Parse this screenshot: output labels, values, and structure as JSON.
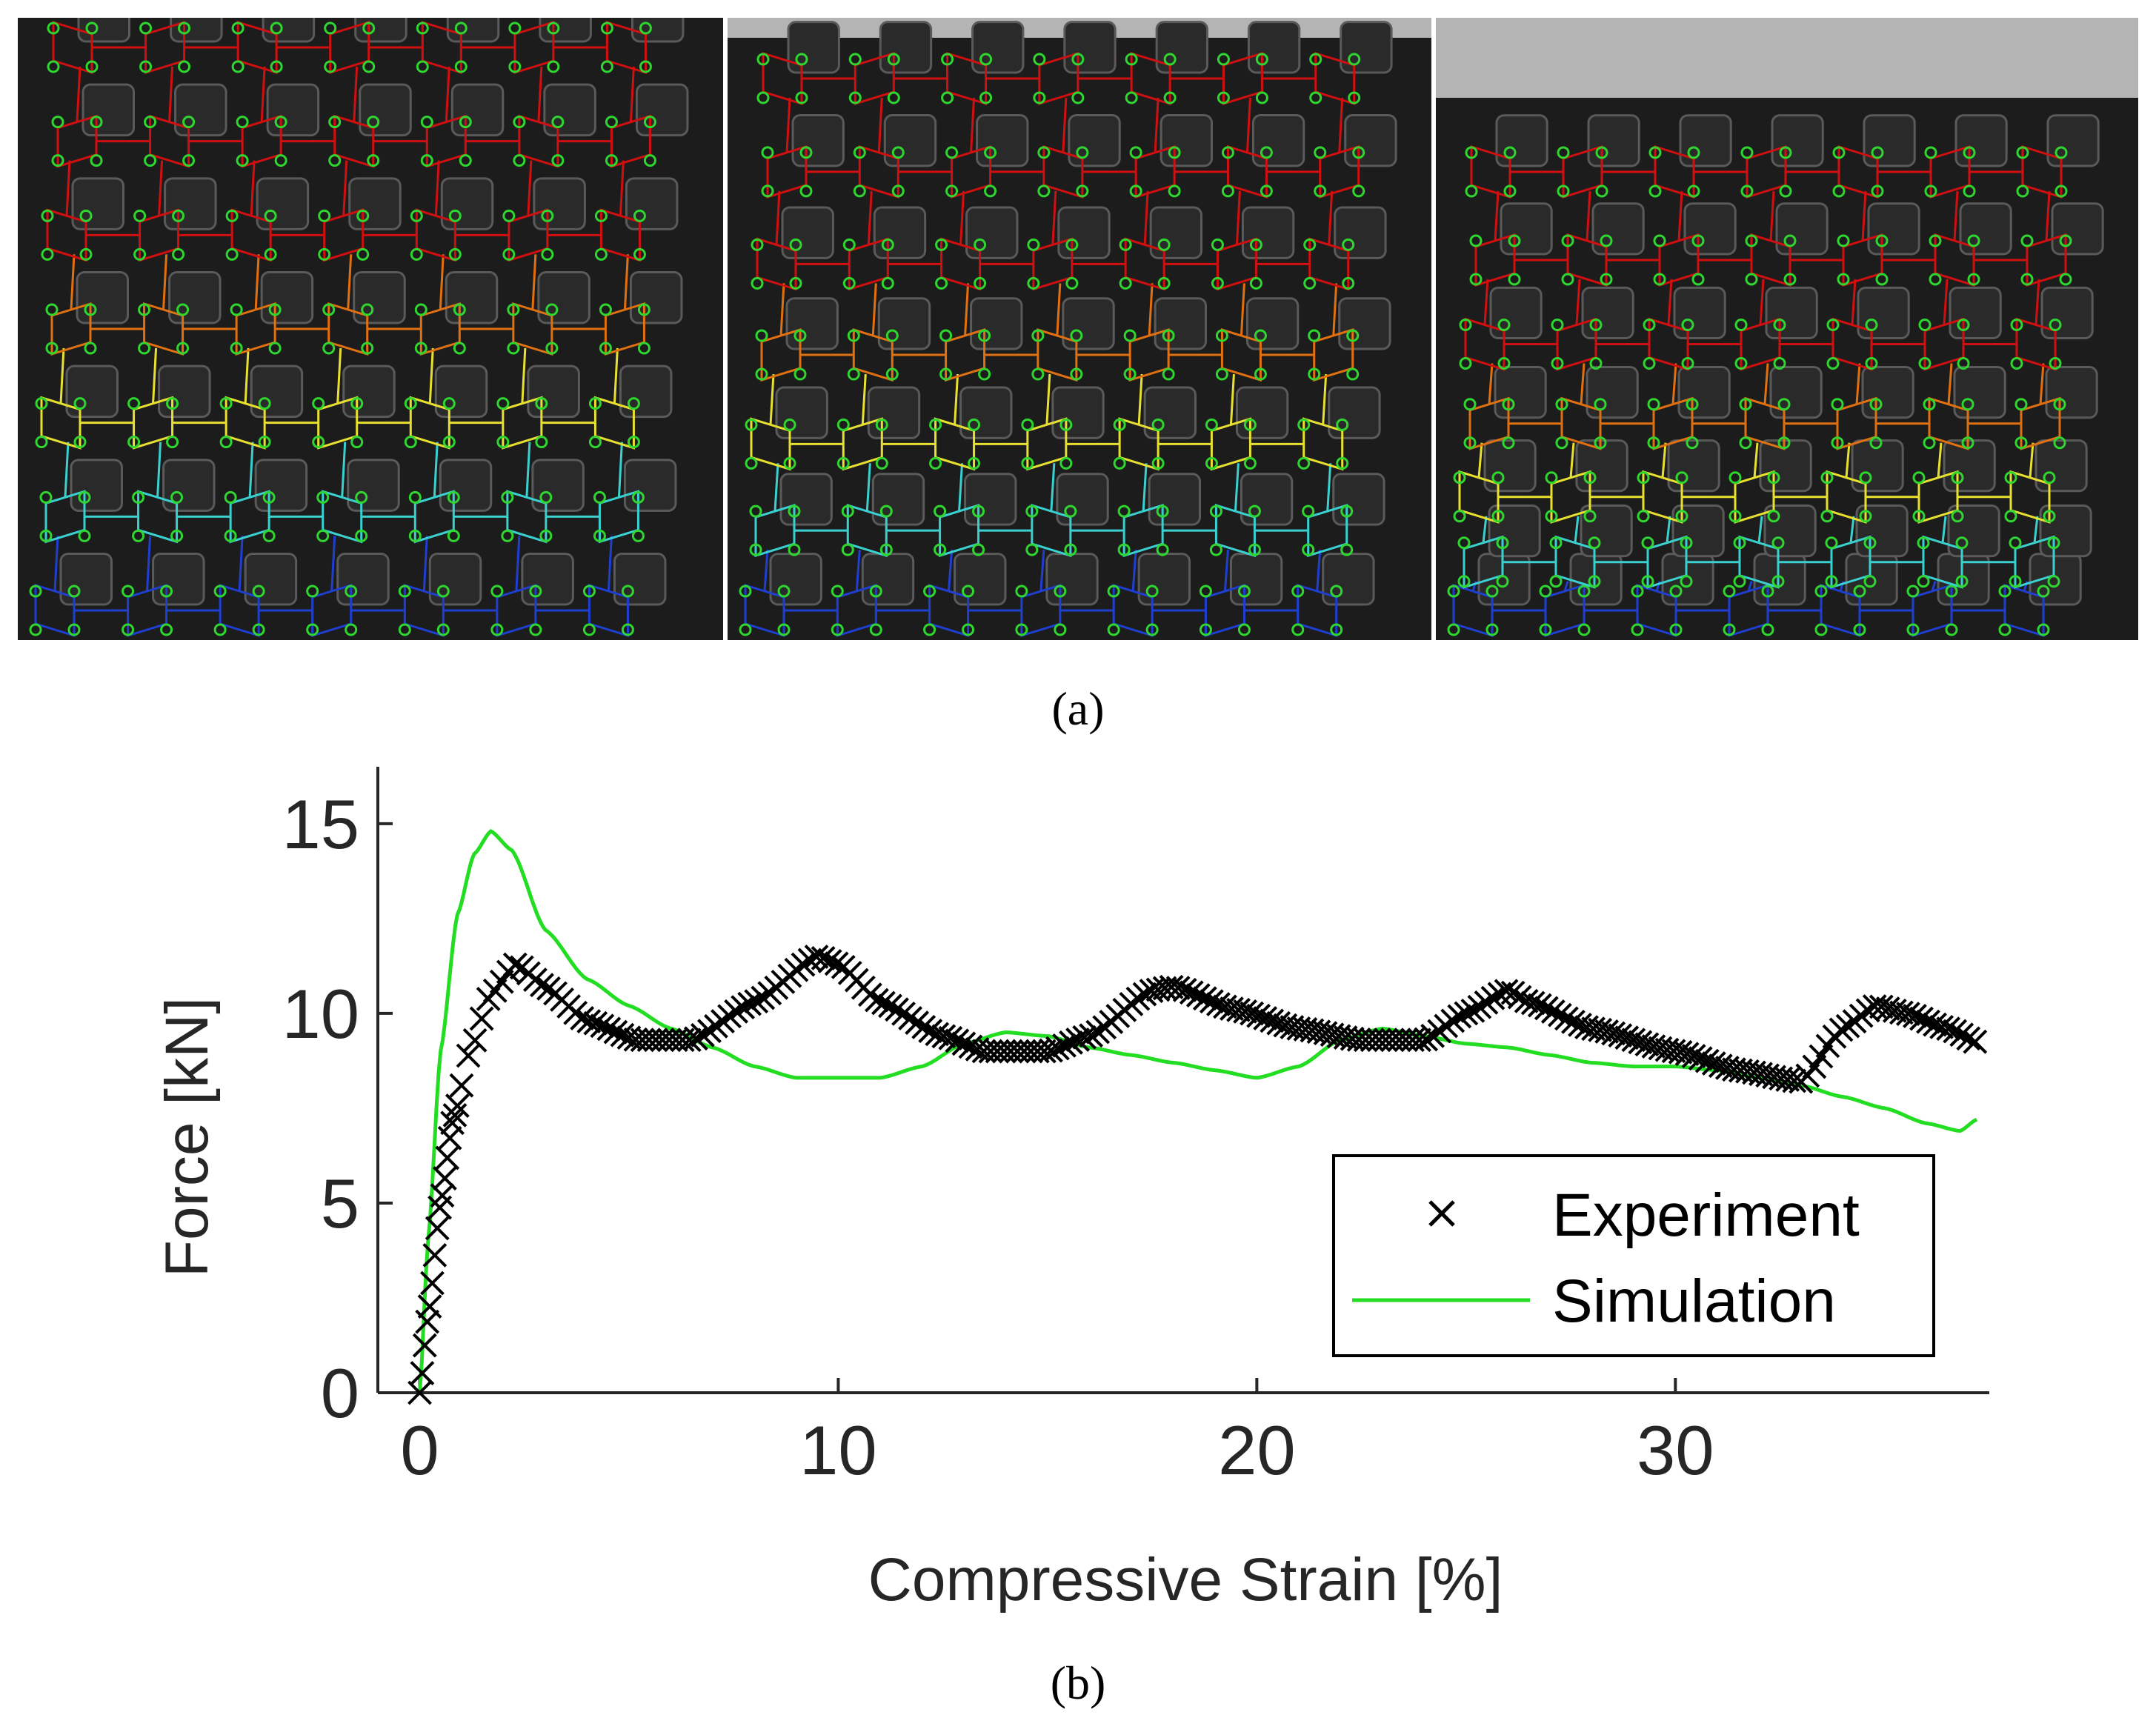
{
  "figure": {
    "caption_a": "(a)",
    "caption_b": "(b)",
    "panels": [
      {
        "name": "frame-initial",
        "compression": 0.0
      },
      {
        "name": "frame-mid",
        "compression": 0.03
      },
      {
        "name": "frame-late",
        "compression": 0.12
      }
    ],
    "colors": {
      "node": "#2fd62f",
      "cell_low": "#1f3fd0",
      "cell_mid": "#3ad0d0",
      "cell_mid2": "#e8e030",
      "cell_high": "#e07010",
      "cell_top": "#d01010"
    }
  },
  "chart_data": {
    "type": "line",
    "title": "",
    "xlabel": "Compressive Strain [%]",
    "ylabel": "Force [kN]",
    "xlim": [
      -1,
      37.5
    ],
    "ylim": [
      0,
      16.5
    ],
    "xticks": [
      0,
      10,
      20,
      30
    ],
    "yticks": [
      0,
      5,
      10,
      15
    ],
    "grid": false,
    "legend_position": "bottom-right",
    "series": [
      {
        "name": "Experiment",
        "marker": "x",
        "color": "#000000",
        "keypoints": [
          [
            0.0,
            0.0
          ],
          [
            0.2,
            2.0
          ],
          [
            0.5,
            5.0
          ],
          [
            0.8,
            7.2
          ],
          [
            1.2,
            9.0
          ],
          [
            1.7,
            10.5
          ],
          [
            2.3,
            11.3
          ],
          [
            3.0,
            10.7
          ],
          [
            4.0,
            9.8
          ],
          [
            5.2,
            9.3
          ],
          [
            6.5,
            9.3
          ],
          [
            8.0,
            10.3
          ],
          [
            9.5,
            11.5
          ],
          [
            10.0,
            11.3
          ],
          [
            11.0,
            10.3
          ],
          [
            12.5,
            9.4
          ],
          [
            13.5,
            9.0
          ],
          [
            15.0,
            9.0
          ],
          [
            16.0,
            9.4
          ],
          [
            17.5,
            10.6
          ],
          [
            18.0,
            10.7
          ],
          [
            19.5,
            10.1
          ],
          [
            21.0,
            9.6
          ],
          [
            22.5,
            9.3
          ],
          [
            24.0,
            9.3
          ],
          [
            25.0,
            10.0
          ],
          [
            26.0,
            10.6
          ],
          [
            26.5,
            10.3
          ],
          [
            28.0,
            9.6
          ],
          [
            30.0,
            9.0
          ],
          [
            31.5,
            8.5
          ],
          [
            33.0,
            8.2
          ],
          [
            34.0,
            9.6
          ],
          [
            34.8,
            10.2
          ],
          [
            35.5,
            10.0
          ],
          [
            36.5,
            9.6
          ],
          [
            37.3,
            9.2
          ]
        ]
      },
      {
        "name": "Simulation",
        "marker": "none",
        "color": "#22dd22",
        "keypoints": [
          [
            0.0,
            0.0
          ],
          [
            0.2,
            4.0
          ],
          [
            0.5,
            9.0
          ],
          [
            0.9,
            12.6
          ],
          [
            1.3,
            14.2
          ],
          [
            1.7,
            14.8
          ],
          [
            2.2,
            14.3
          ],
          [
            3.0,
            12.2
          ],
          [
            4.0,
            10.9
          ],
          [
            5.0,
            10.2
          ],
          [
            6.0,
            9.6
          ],
          [
            7.0,
            9.1
          ],
          [
            8.0,
            8.6
          ],
          [
            9.0,
            8.3
          ],
          [
            10.0,
            8.3
          ],
          [
            11.0,
            8.3
          ],
          [
            12.0,
            8.6
          ],
          [
            13.0,
            9.2
          ],
          [
            14.0,
            9.5
          ],
          [
            15.0,
            9.4
          ],
          [
            16.0,
            9.1
          ],
          [
            17.0,
            8.9
          ],
          [
            18.0,
            8.7
          ],
          [
            19.0,
            8.5
          ],
          [
            20.0,
            8.3
          ],
          [
            21.0,
            8.6
          ],
          [
            22.0,
            9.3
          ],
          [
            23.0,
            9.6
          ],
          [
            24.0,
            9.4
          ],
          [
            25.0,
            9.2
          ],
          [
            26.0,
            9.1
          ],
          [
            27.0,
            8.9
          ],
          [
            28.0,
            8.7
          ],
          [
            29.0,
            8.6
          ],
          [
            30.0,
            8.6
          ],
          [
            31.0,
            8.5
          ],
          [
            32.0,
            8.3
          ],
          [
            33.0,
            8.1
          ],
          [
            34.0,
            7.8
          ],
          [
            35.0,
            7.5
          ],
          [
            36.0,
            7.1
          ],
          [
            36.8,
            6.9
          ],
          [
            37.2,
            7.2
          ]
        ]
      }
    ]
  }
}
